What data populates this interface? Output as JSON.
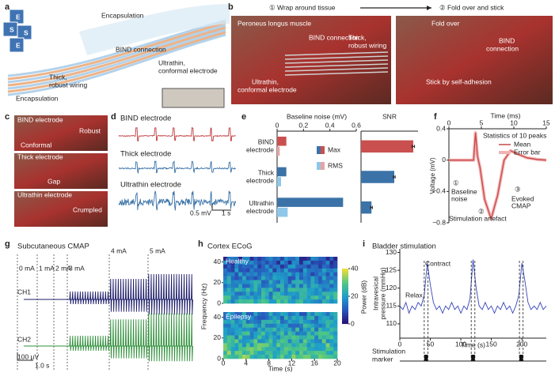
{
  "panels": {
    "a": {
      "label": "a",
      "icon_letters": [
        "E",
        "S",
        "S",
        "E"
      ],
      "encapsulation_top": "Encapsulation",
      "bind_connection": "BIND connection",
      "thick_wiring": [
        "Thick,",
        "robust wiring"
      ],
      "encapsulation_bottom": "Encapsulation",
      "ultrathin": [
        "Ultrathin,",
        "conformal electrode"
      ]
    },
    "b": {
      "label": "b",
      "step1": "① Wrap around tissue",
      "step2": "② Fold over and stick",
      "muscle": "Peroneus longus muscle",
      "bind_connection_1": "BIND connection",
      "thick": [
        "Thick,",
        "robust wiring"
      ],
      "ultrathin": [
        "Ultrathin,",
        "conformal electrode"
      ],
      "fold_over": "Fold over",
      "bind_connection_2": [
        "BIND",
        "connection"
      ],
      "stick": "Stick by self-adhesion"
    },
    "c": {
      "label": "c",
      "bind": "BIND electrode",
      "robust": "Robust",
      "conformal": "Conformal",
      "thick": "Thick electrode",
      "gap": "Gap",
      "ultrathin": "Ultrathin electrode",
      "crumpled": "Crumpled"
    },
    "d": {
      "label": "d",
      "bind": "BIND electrode",
      "thick": "Thick electrode",
      "ultrathin": "Ultrathin electrode",
      "scale_v": "0.5 mV",
      "scale_t": "1 s"
    },
    "g": {
      "label": "g",
      "title": "Subcutaneous CMAP",
      "currents": [
        "0 mA",
        "1 mA",
        "2 mA",
        "3 mA",
        "4 mA",
        "5 mA"
      ],
      "ch1": "CH1",
      "ch2": "CH2",
      "scale_v": "100 µV",
      "scale_t": "1.0 s"
    },
    "h": {
      "label": "h",
      "title": "Cortex ECoG",
      "healthy": "Healthy",
      "epilepsy": "Epilepsy",
      "ylabel": "Frequency (Hz)",
      "ylim": [
        0,
        45
      ],
      "yticks": [
        0,
        20,
        40
      ],
      "xlabel": "Time (s)",
      "xlim": [
        0,
        20
      ],
      "xticks": [
        0,
        4,
        8,
        12,
        16,
        20
      ],
      "colorbar_label": "Power (dB)",
      "colorbar_lim": [
        0,
        40
      ],
      "colorbar_ticks": [
        0,
        20,
        40
      ]
    }
  },
  "chart_data": [
    {
      "type": "hbar",
      "panel": "e",
      "title": "Baseline noise (mV)",
      "categories": [
        [
          "BIND",
          "electrode"
        ],
        [
          "Thick",
          "electrode"
        ],
        [
          "Ultrathin",
          "electrode"
        ]
      ],
      "xlim": [
        0,
        0.6
      ],
      "xticks": [
        0,
        0.2,
        0.4,
        0.6
      ],
      "series": [
        {
          "name": "Max",
          "color": "#3b73a8",
          "colors": [
            "#c9504f",
            "#3b73a8",
            "#3b73a8"
          ],
          "values": [
            0.07,
            0.07,
            0.5
          ]
        },
        {
          "name": "RMS",
          "color": "#8ec7ea",
          "colors": [
            "#e9a3a3",
            "#8ec7ea",
            "#8ec7ea"
          ],
          "values": [
            0.02,
            0.03,
            0.08
          ]
        }
      ]
    },
    {
      "type": "hbar",
      "title": "SNR",
      "xlim": [
        0,
        18
      ],
      "values": [
        16.5,
        10.5,
        3.3
      ],
      "errors": [
        0.4,
        0.3,
        0.3
      ],
      "colors": [
        "#c9504f",
        "#3b73a8",
        "#3b73a8"
      ]
    },
    {
      "type": "line",
      "panel": "f",
      "xlabel": "Time (ms)",
      "ylabel": "Voltage (mV)",
      "xlim": [
        0,
        15
      ],
      "xticks": [
        0,
        5,
        10,
        15
      ],
      "ylim": [
        -0.8,
        0.4
      ],
      "yticks": [
        {
          "value": -0.8,
          "label": "−0.8"
        },
        {
          "value": -0.4,
          "label": "−0.4"
        },
        0,
        0.4
      ],
      "x": [
        0,
        1,
        2,
        3,
        3.8,
        4.1,
        4.4,
        4.8,
        5.5,
        6.5,
        7.5,
        8.5,
        9.5,
        10.5,
        12,
        13.5,
        15
      ],
      "series": [
        {
          "name": "Mean",
          "color": "#c84848",
          "values": [
            0,
            0,
            0,
            0,
            0,
            0.35,
            0.05,
            -0.1,
            -0.5,
            -0.75,
            -0.45,
            0,
            0.12,
            0.08,
            0.03,
            0.01,
            0
          ]
        }
      ],
      "error_band": {
        "name": "Error bar",
        "color": "#f2b3b3"
      },
      "legend_title": "Statistics of 10 peaks",
      "annotations": {
        "markers": [
          "①",
          "②",
          "③"
        ],
        "baseline": [
          "Baseline",
          "noise"
        ],
        "artefact": "Stimulation artefact",
        "cmap": [
          "Evoked",
          "CMAP"
        ]
      }
    },
    {
      "type": "line",
      "panel": "i",
      "title": "Bladder stimulation",
      "xlabel": "Time (s)",
      "ylabel": [
        "Intravesical",
        "pressure (mmHg)"
      ],
      "xlim": [
        0,
        240
      ],
      "xticks": [
        0,
        50,
        100,
        150,
        200
      ],
      "ylim": [
        106,
        131
      ],
      "yticks": [
        110,
        115,
        120,
        125,
        130
      ],
      "x": [
        0,
        5,
        10,
        15,
        20,
        25,
        30,
        35,
        40,
        45,
        50,
        55,
        60,
        65,
        70,
        75,
        80,
        85,
        90,
        95,
        100,
        105,
        110,
        115,
        120,
        125,
        130,
        135,
        140,
        145,
        150,
        155,
        160,
        165,
        170,
        175,
        180,
        185,
        190,
        195,
        200,
        205,
        210,
        215,
        220,
        225,
        230,
        235,
        240
      ],
      "values": [
        115,
        114,
        116,
        113,
        115,
        114,
        116,
        115,
        118,
        127,
        121,
        116,
        114,
        115,
        113,
        115,
        114,
        116,
        114,
        115,
        113,
        115,
        114,
        117,
        128,
        120,
        115,
        114,
        116,
        114,
        115,
        113,
        115,
        114,
        116,
        114,
        115,
        113,
        115,
        118,
        127,
        122,
        116,
        114,
        115,
        114,
        116,
        114,
        115
      ],
      "color": "#3344bb",
      "annotations": {
        "contract": "Contract",
        "relax": "Relax"
      },
      "marker_label": [
        "Stimulation",
        "marker"
      ],
      "stimulation_intervals": [
        [
          40,
          46
        ],
        [
          117,
          123
        ],
        [
          196,
          202
        ]
      ]
    }
  ]
}
